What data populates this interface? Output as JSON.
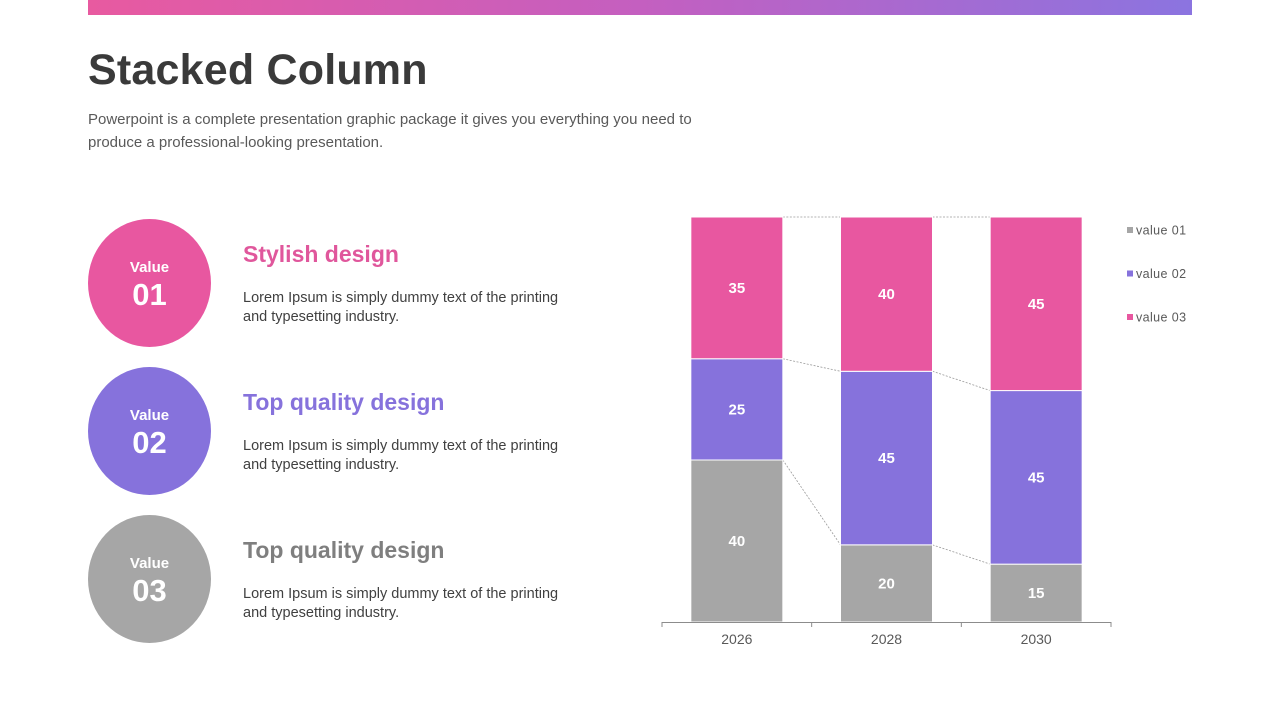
{
  "slide": {
    "title": "Stacked Column",
    "subtitle": "Powerpoint is a complete presentation graphic package it gives you everything  you need to produce a professional-looking presentation."
  },
  "items": [
    {
      "circle_label": "Value",
      "circle_number": "01",
      "heading": "Stylish design",
      "text": "Lorem Ipsum is simply dummy text of the printing and typesetting industry.",
      "color": "#e857a0",
      "heading_color": "#e0579c"
    },
    {
      "circle_label": "Value",
      "circle_number": "02",
      "heading": "Top quality design",
      "text": "Lorem Ipsum is simply dummy text of the printing and typesetting industry.",
      "color": "#8672dc",
      "heading_color": "#8672dc"
    },
    {
      "circle_label": "Value",
      "circle_number": "03",
      "heading": "Top quality design",
      "text": "Lorem Ipsum is simply dummy text of the printing and typesetting industry.",
      "color": "#a6a6a6",
      "heading_color": "#7f7f7f"
    }
  ],
  "chart_data": {
    "type": "bar",
    "stacked": true,
    "percent_stacked": true,
    "categories": [
      "2026",
      "2028",
      "2030"
    ],
    "series": [
      {
        "name": "value 01",
        "values": [
          40,
          20,
          15
        ],
        "color": "#a6a6a6"
      },
      {
        "name": "value 02",
        "values": [
          25,
          45,
          45
        ],
        "color": "#8672dc"
      },
      {
        "name": "value 03",
        "values": [
          35,
          40,
          45
        ],
        "color": "#e857a0"
      }
    ],
    "title": "",
    "xlabel": "",
    "ylabel": "",
    "grid": false,
    "series_lines": true,
    "legend_position": "right"
  }
}
